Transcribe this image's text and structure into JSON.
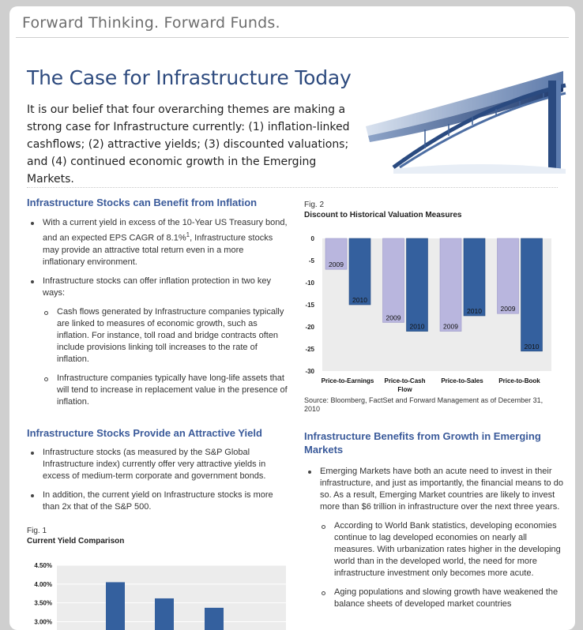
{
  "header": {
    "tagline": "Forward Thinking. Forward Funds.",
    "title": "The Case for Infrastructure Today",
    "intro": "It is our belief that four overarching themes are making a strong case for Infrastructure currently: (1) inflation-linked cashflows; (2) attractive yields; (3) discounted valuations; and (4) continued economic growth in the Emerging Markets."
  },
  "section_inflation": {
    "title": "Infrastructure Stocks can Benefit from Inflation",
    "b1_pre": "With a current yield in excess of the 10-Year US Treasury bond, and an expected EPS CAGR of 8.1%",
    "b1_sup": "1",
    "b1_post": ", Infrastructure stocks may provide an attractive total return even in a more inflationary environment.",
    "b2": "Infrastructure stocks can offer inflation protection in two key ways:",
    "s1": "Cash flows generated by Infrastructure companies typically are linked to measures of economic growth, such as inflation. For instance, toll road and bridge contracts often include provisions linking toll increases to the rate of inflation.",
    "s2": "Infrastructure companies typically have long-life assets that will tend to increase in replacement value in the presence of inflation."
  },
  "section_yield": {
    "title": "Infrastructure Stocks Provide an Attractive Yield",
    "b1": "Infrastructure stocks (as measured by the S&P Global Infrastructure index) currently offer very attractive yields in excess of medium-term corporate and government bonds.",
    "b2": "In addition, the current yield on Infrastructure stocks is more than 2x that of the S&P 500."
  },
  "fig1": {
    "label": "Fig. 1",
    "title": "Current Yield Comparison"
  },
  "fig2": {
    "label": "Fig. 2",
    "title": "Discount to Historical Valuation Measures",
    "source": "Source: Bloomberg, FactSet and Forward Management as of December 31, 2010"
  },
  "section_em": {
    "title": "Infrastructure Benefits from Growth in Emerging Markets",
    "b1": "Emerging Markets have both an acute need to invest in their infrastructure, and just as importantly, the financial means to do so. As a result, Emerging Market countries are likely to invest more than $6 trillion in infrastructure over the next three years.",
    "s1": "According to World Bank statistics, developing economies continue to lag developed economies on nearly all measures. With urbanization rates higher in the developing world than in the developed world, the need for more infrastructure investment only becomes more acute.",
    "s2": "Aging populations and slowing growth have weakened the balance sheets of developed market countries"
  },
  "colors": {
    "accent": "#2d4a7e",
    "bar_2009": "#b9b6de",
    "bar_2010": "#34609e"
  },
  "chart_data": [
    {
      "type": "bar",
      "title": "Discount to Historical Valuation Measures",
      "categories": [
        "Price-to-Earnings",
        "Price-to-Cash Flow",
        "Price-to-Sales",
        "Price-to-Book"
      ],
      "series": [
        {
          "name": "2009",
          "values": [
            -7,
            -19,
            -21,
            -17
          ]
        },
        {
          "name": "2010",
          "values": [
            -15,
            -21,
            -17.5,
            -25.5
          ]
        }
      ],
      "yticks": [
        0,
        -5,
        -10,
        -15,
        -20,
        -25,
        -30
      ],
      "ylim": [
        -30,
        0
      ],
      "grid": false
    },
    {
      "type": "bar",
      "title": "Current Yield Comparison",
      "values": [
        4.05,
        3.62,
        3.37
      ],
      "yticks": [
        "4.50%",
        "4.00%",
        "3.50%",
        "3.00%"
      ],
      "ylim": [
        3.0,
        4.5
      ],
      "grid": true
    }
  ]
}
